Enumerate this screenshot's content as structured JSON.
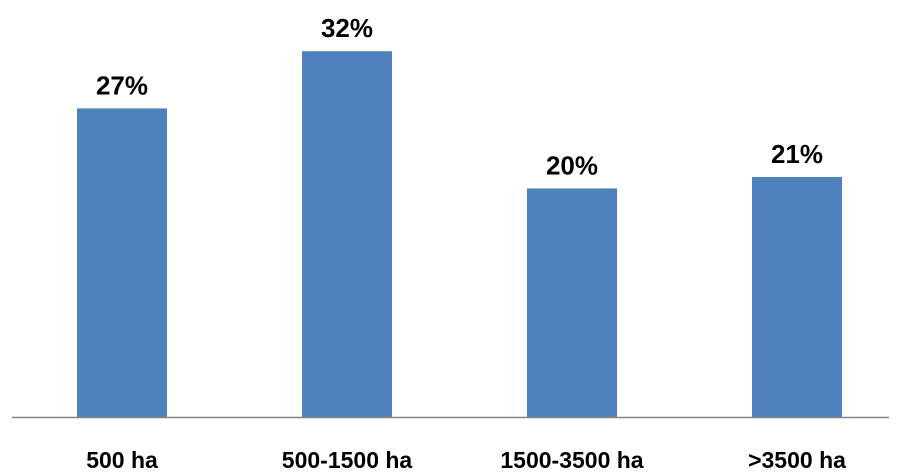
{
  "chart_data": {
    "type": "bar",
    "categories": [
      "500 ha",
      "500-1500 ha",
      "1500-3500 ha",
      ">3500 ha"
    ],
    "values": [
      27,
      32,
      20,
      21
    ],
    "value_labels": [
      "27%",
      "32%",
      "20%",
      "21%"
    ],
    "unit": "%",
    "title": "",
    "xlabel": "",
    "ylabel": "",
    "ylim": [
      0,
      35
    ],
    "grid": false,
    "legend": "none",
    "colors": {
      "bar": "#4F81BD",
      "axis": "#868686",
      "text": "#000000"
    }
  }
}
